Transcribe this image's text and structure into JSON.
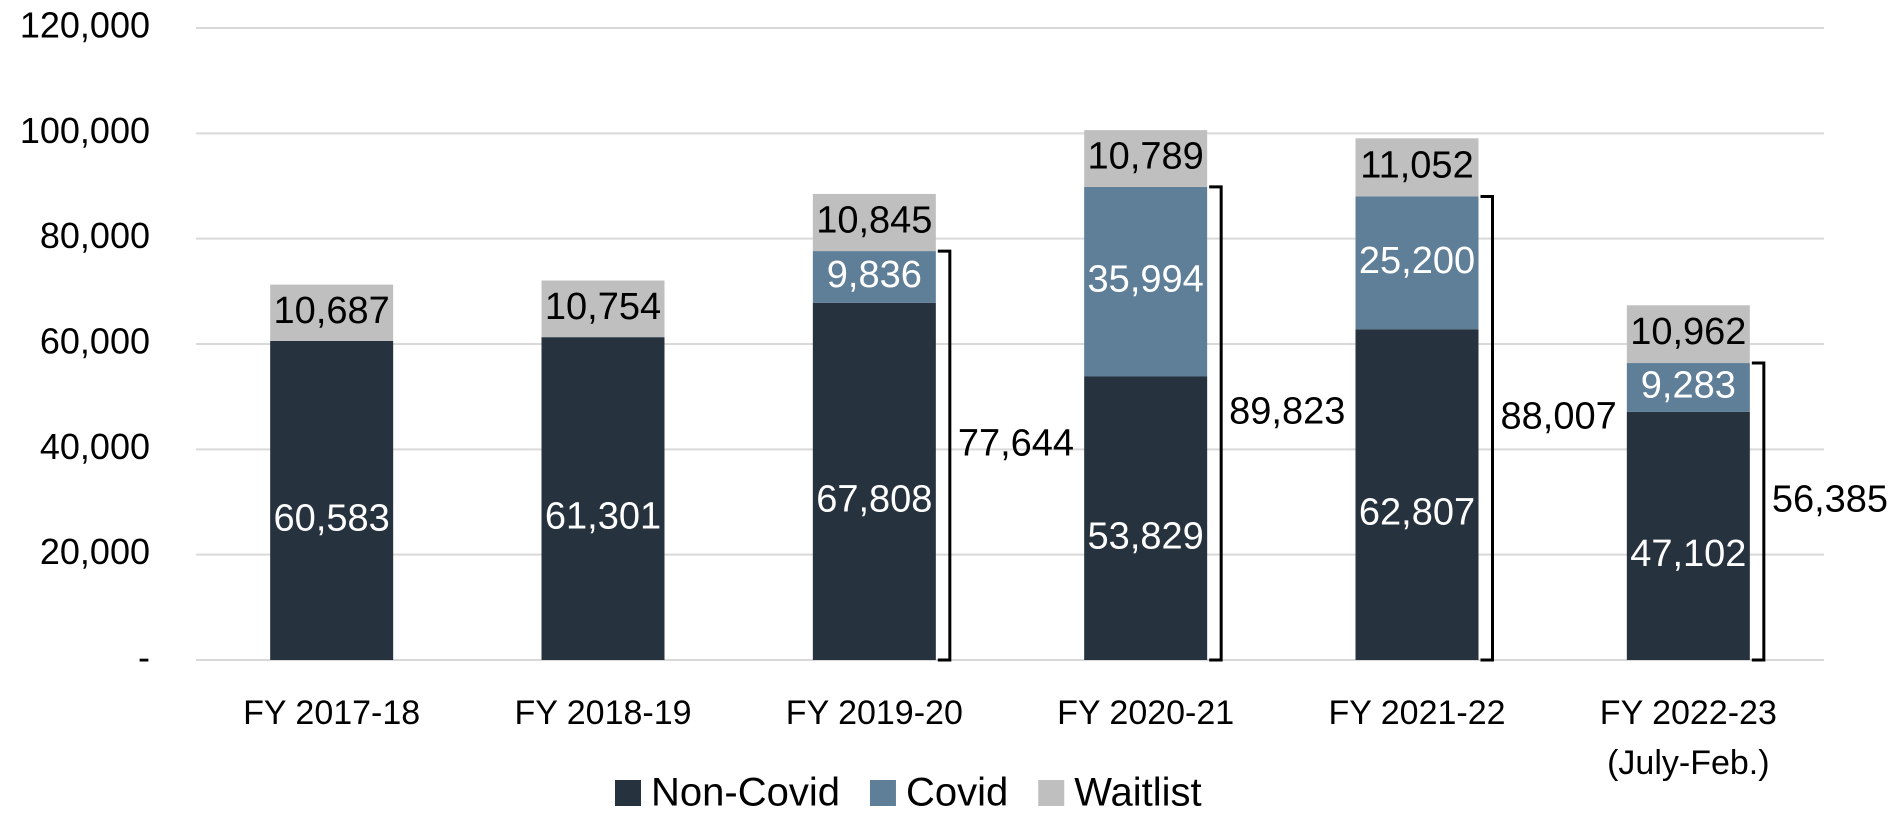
{
  "chart_data": {
    "type": "stacked_bar",
    "categories": [
      "FY 2017-18",
      "FY 2018-19",
      "FY 2019-20",
      "FY 2020-21",
      "FY 2021-22",
      "FY 2022-23\n(July-Feb.)"
    ],
    "series": [
      {
        "name": "Non-Covid",
        "color": "#27323f",
        "label_color": "#ffffff",
        "values": [
          60583,
          61301,
          67808,
          53829,
          62807,
          47102
        ],
        "value_labels": [
          "60,583",
          "61,301",
          "67,808",
          "53,829",
          "62,807",
          "47,102"
        ]
      },
      {
        "name": "Covid",
        "color": "#5f7f99",
        "label_color": "#ffffff",
        "values": [
          null,
          null,
          9836,
          35994,
          25200,
          9283
        ],
        "value_labels": [
          null,
          null,
          "9,836",
          "35,994",
          "25,200",
          "9,283"
        ]
      },
      {
        "name": "Waitlist",
        "color": "#bfbfbf",
        "label_color": "#000000",
        "values": [
          10687,
          10754,
          10845,
          10789,
          11052,
          10962
        ],
        "value_labels": [
          "10,687",
          "10,754",
          "10,845",
          "10,789",
          "11,052",
          "10,962"
        ]
      }
    ],
    "bracket_totals": {
      "values": [
        null,
        null,
        77644,
        89823,
        88007,
        56385
      ],
      "value_labels": [
        null,
        null,
        "77,644",
        "89,823",
        "88,007",
        "56,385"
      ]
    },
    "ylim": [
      0,
      120000
    ],
    "yticks": [
      {
        "value": 0,
        "label": "-"
      },
      {
        "value": 20000,
        "label": "20,000"
      },
      {
        "value": 40000,
        "label": "40,000"
      },
      {
        "value": 60000,
        "label": "60,000"
      },
      {
        "value": 80000,
        "label": "80,000"
      },
      {
        "value": 100000,
        "label": "100,000"
      },
      {
        "value": 120000,
        "label": "120,000"
      }
    ],
    "grid": true,
    "legend": "bottom"
  }
}
